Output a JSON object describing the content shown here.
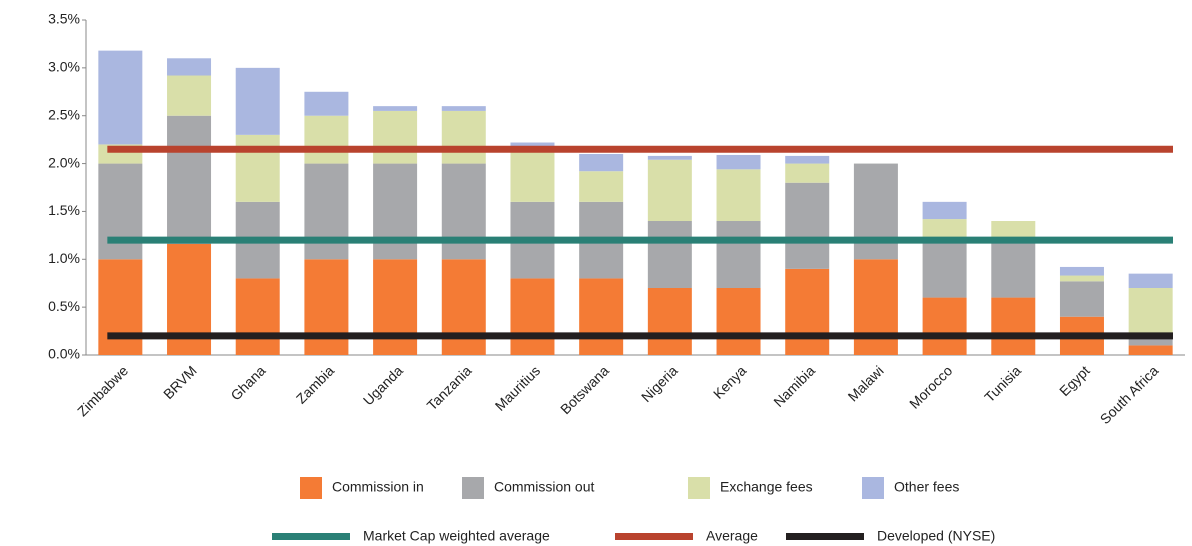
{
  "chart_data": {
    "type": "stacked-bar",
    "categories": [
      "Zimbabwe",
      "BRVM",
      "Ghana",
      "Zambia",
      "Uganda",
      "Tanzania",
      "Mauritius",
      "Botswana",
      "Nigeria",
      "Kenya",
      "Namibia",
      "Malawi",
      "Morocco",
      "Tunisia",
      "Egypt",
      "South Africa"
    ],
    "series": [
      {
        "name": "Commission in",
        "color": "#f47b35",
        "values": [
          1.0,
          1.16,
          0.8,
          1.0,
          1.0,
          1.0,
          0.8,
          0.8,
          0.7,
          0.7,
          0.9,
          1.0,
          0.6,
          0.6,
          0.4,
          0.1
        ]
      },
      {
        "name": "Commission out",
        "color": "#a7a8ab",
        "values": [
          1.0,
          1.34,
          0.8,
          1.0,
          1.0,
          1.0,
          0.8,
          0.8,
          0.7,
          0.7,
          0.9,
          1.0,
          0.62,
          0.62,
          0.37,
          0.1
        ]
      },
      {
        "name": "Exchange fees",
        "color": "#d9dfa9",
        "values": [
          0.2,
          0.42,
          0.7,
          0.5,
          0.55,
          0.55,
          0.58,
          0.32,
          0.64,
          0.54,
          0.2,
          0,
          0.2,
          0.18,
          0.06,
          0.5
        ]
      },
      {
        "name": "Other fees",
        "color": "#aab7e0",
        "values": [
          0.98,
          0.18,
          0.7,
          0.25,
          0.05,
          0.05,
          0.04,
          0.18,
          0.04,
          0.15,
          0.08,
          0,
          0.18,
          0,
          0.09,
          0.15
        ]
      }
    ],
    "lines": [
      {
        "name": "Market Cap weighted average",
        "color": "#2a8076",
        "value": 1.2
      },
      {
        "name": "Average",
        "color": "#b9432e",
        "value": 2.15
      },
      {
        "name": "Developed (NYSE)",
        "color": "#231f20",
        "value": 0.2
      }
    ],
    "ylim": [
      0,
      3.5
    ],
    "yticks": [
      {
        "value": 0,
        "label": "0.0%"
      },
      {
        "value": 0.5,
        "label": "0.5%"
      },
      {
        "value": 1,
        "label": "1.0%"
      },
      {
        "value": 1.5,
        "label": "1.5%"
      },
      {
        "value": 2,
        "label": "2.0%"
      },
      {
        "value": 2.5,
        "label": "2.5%"
      },
      {
        "value": 3,
        "label": "3.0%"
      },
      {
        "value": 3.5,
        "label": "3.5%"
      }
    ],
    "grid": false
  }
}
